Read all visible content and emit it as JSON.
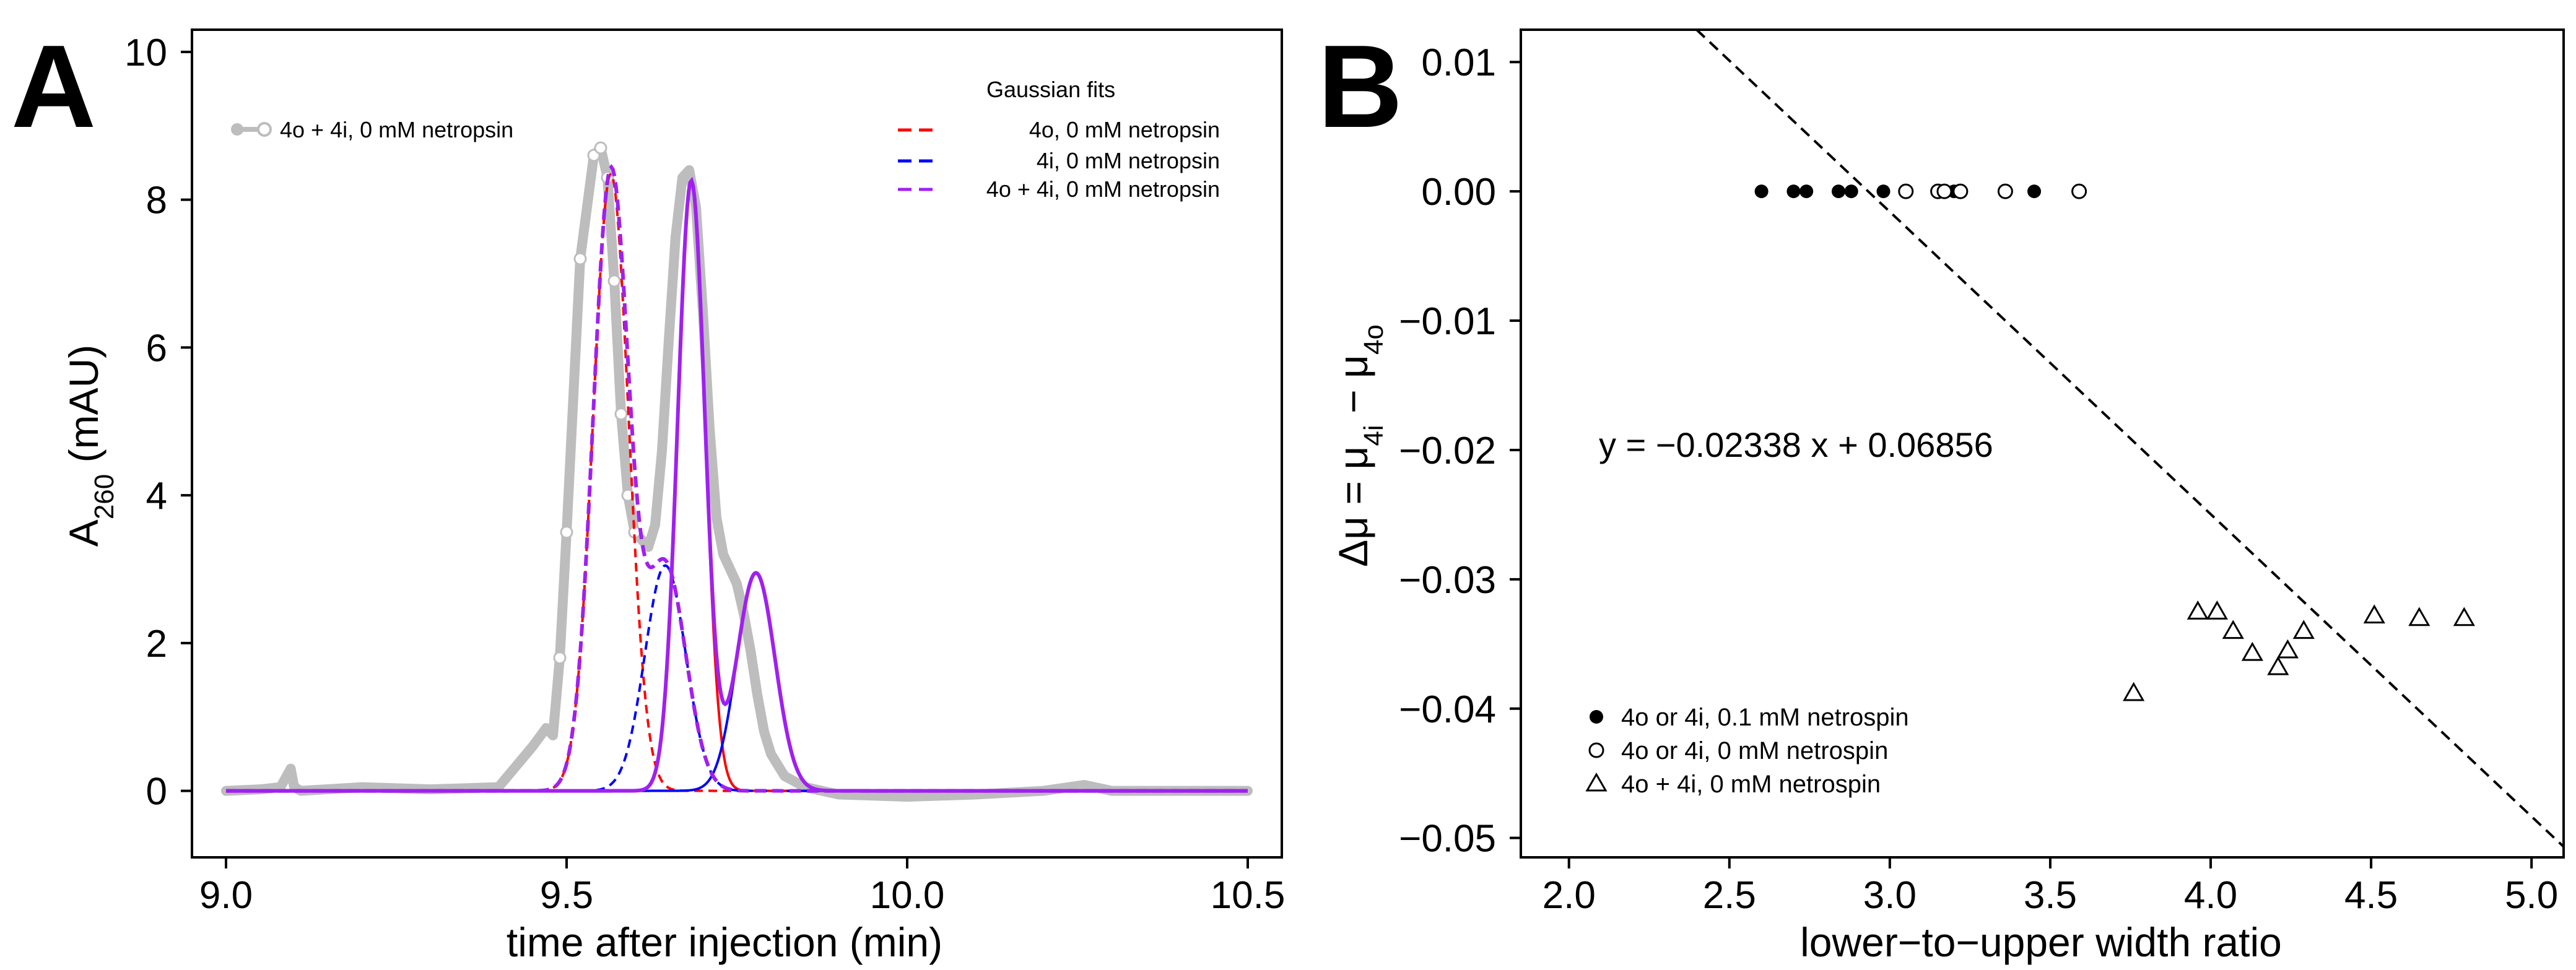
{
  "colors": {
    "raw_data": "#bdbdbd",
    "fit_4o": "#ff0000",
    "fit_4i": "#0000ff",
    "fit_sum": "#a020f0",
    "axis": "#000000"
  },
  "panel_a": {
    "letter": "A",
    "ylabel_main": "A",
    "ylabel_sub": "260",
    "ylabel_unit": " (mAU)",
    "legend_raw": "4o + 4i, 0 mM netropsin",
    "legend_fit_title": "Gaussian fits",
    "legend_fits": [
      "4o, 0 mM netropsin",
      "4i, 0 mM netropsin",
      "4o + 4i, 0 mM netropsin"
    ]
  },
  "panel_b": {
    "letter": "B",
    "ylabel_delta": "Δμ = μ",
    "ylabel_sub1": "4i",
    "ylabel_minus": " − μ",
    "ylabel_sub2": "4o",
    "equation": "y = −0.02338 x + 0.06856",
    "legend_items": [
      "4o or 4i, 0.1 mM netrospin",
      "4o or 4i,    0 mM netrospin",
      " 4o + 4i,    0 mM netrospin"
    ]
  },
  "chart_data": [
    {
      "type": "line",
      "title": "",
      "xlabel": "time after injection (min)",
      "ylabel": "A260 (mAU)",
      "xlim": [
        8.95,
        10.55
      ],
      "ylim": [
        -0.9,
        10.3
      ],
      "xticks": [
        "9.0",
        "9.5",
        "10.0",
        "10.5"
      ],
      "xtick_values": [
        9.0,
        9.5,
        10.0,
        10.5
      ],
      "yticks": [
        "0",
        "2",
        "4",
        "6",
        "8",
        "10"
      ],
      "ytick_values": [
        0,
        2,
        4,
        6,
        8,
        10
      ],
      "raw_series": {
        "name": "4o + 4i, 0 mM netropsin",
        "x": [
          9.0,
          9.05,
          9.08,
          9.095,
          9.1,
          9.11,
          9.2,
          9.3,
          9.4,
          9.45,
          9.47,
          9.48,
          9.49,
          9.5,
          9.52,
          9.54,
          9.55,
          9.56,
          9.57,
          9.58,
          9.59,
          9.6,
          9.61,
          9.62,
          9.63,
          9.64,
          9.65,
          9.66,
          9.67,
          9.68,
          9.69,
          9.7,
          9.71,
          9.72,
          9.73,
          9.74,
          9.75,
          9.76,
          9.77,
          9.78,
          9.79,
          9.8,
          9.82,
          9.85,
          9.9,
          10.0,
          10.1,
          10.2,
          10.26,
          10.3,
          10.4,
          10.5
        ],
        "y": [
          0.0,
          0.02,
          0.05,
          0.3,
          0.05,
          0.0,
          0.05,
          0.02,
          0.05,
          0.6,
          0.85,
          0.75,
          1.8,
          3.5,
          7.2,
          8.6,
          8.7,
          8.3,
          6.9,
          5.1,
          4.0,
          3.5,
          3.4,
          3.3,
          3.6,
          4.6,
          6.1,
          7.5,
          8.3,
          8.4,
          7.9,
          6.5,
          4.9,
          3.7,
          3.2,
          3.0,
          2.8,
          2.4,
          1.9,
          1.3,
          0.8,
          0.5,
          0.2,
          0.05,
          -0.05,
          -0.08,
          -0.05,
          0.0,
          0.08,
          0.0,
          0.0,
          0.0
        ]
      },
      "series": [
        {
          "name": "4o, 0 mM netropsin",
          "components": [
            {
              "amp": 8.35,
              "mu": 9.565,
              "sigma": 0.026
            },
            {
              "amp": 8.25,
              "mu": 9.683,
              "sigma": 0.02
            }
          ]
        },
        {
          "name": "4i, 0 mM netropsin",
          "components": [
            {
              "amp": 3.05,
              "mu": 9.645,
              "sigma": 0.03
            },
            {
              "amp": 2.95,
              "mu": 9.778,
              "sigma": 0.028
            }
          ]
        },
        {
          "name": "4o + 4i, 0 mM netropsin",
          "components": [
            {
              "amp": 8.35,
              "mu": 9.565,
              "sigma": 0.026
            },
            {
              "amp": 3.05,
              "mu": 9.645,
              "sigma": 0.03
            },
            {
              "amp": 8.25,
              "mu": 9.683,
              "sigma": 0.02
            },
            {
              "amp": 2.95,
              "mu": 9.778,
              "sigma": 0.028
            }
          ]
        }
      ]
    },
    {
      "type": "scatter",
      "title": "",
      "xlabel": "lower−to−upper width ratio",
      "ylabel": "Δμ = μ4i − μ4o",
      "xlim": [
        1.85,
        5.1
      ],
      "ylim": [
        -0.0515,
        0.0125
      ],
      "xticks": [
        "2.0",
        "2.5",
        "3.0",
        "3.5",
        "4.0",
        "4.5",
        "5.0"
      ],
      "xtick_values": [
        2.0,
        2.5,
        3.0,
        3.5,
        4.0,
        4.5,
        5.0
      ],
      "yticks": [
        "0.01",
        "0.00",
        "−0.01",
        "−0.02",
        "−0.03",
        "−0.04",
        "−0.05"
      ],
      "ytick_values": [
        0.01,
        0.0,
        -0.01,
        -0.02,
        -0.03,
        -0.04,
        -0.05
      ],
      "series": [
        {
          "name": "4o or 4i, 0.1 mM netrospin",
          "marker": "filled-circle",
          "x": [
            2.6,
            2.7,
            2.74,
            2.84,
            2.88,
            2.98,
            3.2,
            3.22,
            3.45
          ],
          "y": [
            0,
            0,
            0,
            0,
            0,
            0,
            0,
            0,
            0
          ]
        },
        {
          "name": "4o or 4i, 0 mM netrospin",
          "marker": "open-circle",
          "x": [
            3.05,
            3.15,
            3.17,
            3.22,
            3.36,
            3.59
          ],
          "y": [
            0,
            0,
            0,
            0,
            0,
            0
          ]
        },
        {
          "name": "4o + 4i, 0 mM netrospin",
          "marker": "open-triangle",
          "x": [
            3.76,
            3.96,
            4.02,
            4.07,
            4.13,
            4.21,
            4.24,
            4.29,
            4.51,
            4.65,
            4.79
          ],
          "y": [
            -0.0388,
            -0.0325,
            -0.0325,
            -0.034,
            -0.0357,
            -0.0368,
            -0.0355,
            -0.034,
            -0.0328,
            -0.033,
            -0.033
          ]
        }
      ],
      "fit_line": {
        "label": "y = −0.02338 x + 0.06856",
        "slope": -0.02338,
        "intercept": 0.06856
      }
    }
  ]
}
